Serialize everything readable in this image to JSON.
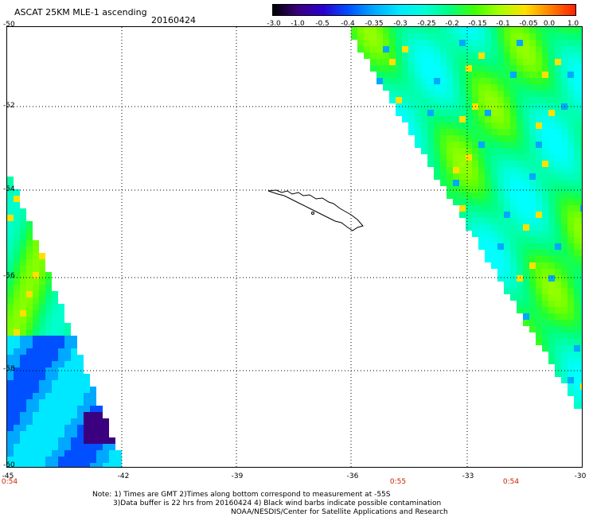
{
  "header": {
    "title": "ASCAT 25KM MLE-1 ascending",
    "date": "20160424"
  },
  "colorbar": {
    "labels": [
      "-3.0",
      "-1.0",
      "-0.5",
      "-0.4",
      "-0.35",
      "-0.3",
      "-0.25",
      "-0.2",
      "-0.15",
      "-0.1",
      "-0.05",
      "0.0",
      "1.0"
    ],
    "colors": [
      "#000000",
      "#3a0080",
      "#2a00d0",
      "#0050ff",
      "#00a8ff",
      "#00e8ff",
      "#00ffd8",
      "#00ff80",
      "#40ff00",
      "#a8ff00",
      "#ffe000",
      "#ff8000",
      "#ff2000"
    ]
  },
  "map": {
    "lat_labels": [
      "-50",
      "-52",
      "-54",
      "-56",
      "-58",
      "-60"
    ],
    "lon_labels": [
      "-45",
      "-42",
      "-39",
      "-36",
      "-33",
      "-30"
    ],
    "time_labels": [
      "0:54",
      "0:55",
      "0:54"
    ],
    "island": "South Georgia coastline (black outline)"
  },
  "notes": {
    "line1": "Note: 1) Times are GMT 2)Times along bottom correspond to measurement at -55S",
    "line2": "3)Data buffer is 22 hrs from 20160424 4) Black wind barbs indicate possible contamination",
    "line3": "NOAA/NESDIS/Center for Satellite Applications and Research"
  }
}
